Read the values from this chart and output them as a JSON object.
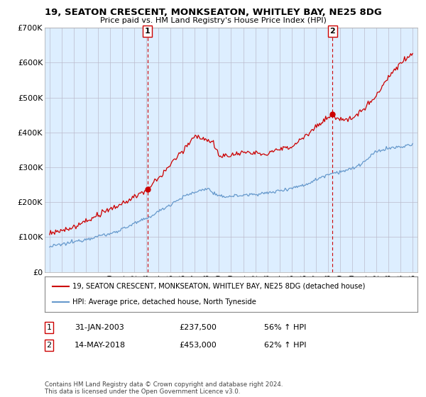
{
  "title": "19, SEATON CRESCENT, MONKSEATON, WHITLEY BAY, NE25 8DG",
  "subtitle": "Price paid vs. HM Land Registry's House Price Index (HPI)",
  "legend_line1": "19, SEATON CRESCENT, MONKSEATON, WHITLEY BAY, NE25 8DG (detached house)",
  "legend_line2": "HPI: Average price, detached house, North Tyneside",
  "sale1_date": "31-JAN-2003",
  "sale1_price": 237500,
  "sale1_label": "56% ↑ HPI",
  "sale2_date": "14-MAY-2018",
  "sale2_price": 453000,
  "sale2_label": "62% ↑ HPI",
  "footnote": "Contains HM Land Registry data © Crown copyright and database right 2024.\nThis data is licensed under the Open Government Licence v3.0.",
  "red_color": "#cc0000",
  "blue_color": "#6699cc",
  "bg_color": "#ffffff",
  "chart_bg_color": "#ddeeff",
  "grid_color": "#bbbbcc",
  "ylim": [
    0,
    700000
  ],
  "yticks": [
    0,
    100000,
    200000,
    300000,
    400000,
    500000,
    600000,
    700000
  ],
  "sale1_x": 2003.083,
  "sale2_x": 2018.375,
  "hpi_1995": 72000,
  "hpi_2003": 152000,
  "hpi_2008": 240000,
  "hpi_2009": 215000,
  "hpi_2013": 225000,
  "hpi_2018": 280000,
  "hpi_2021": 310000,
  "hpi_2022": 345000,
  "hpi_2025": 365000,
  "red_1995": 110000,
  "red_2003": 237500,
  "red_2007": 395000,
  "red_2009": 335000,
  "red_2013": 340000,
  "red_2018": 453000,
  "red_2025": 620000
}
